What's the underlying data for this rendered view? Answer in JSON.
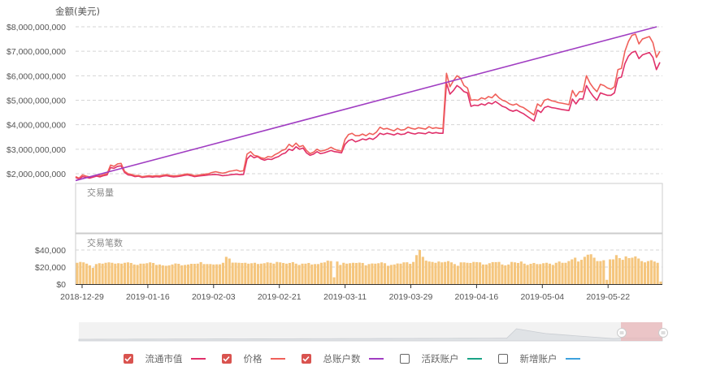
{
  "chart_data": {
    "type": "line",
    "title": "",
    "ylabel": "金额(美元)",
    "xlabel": "",
    "ylim": [
      2000000000,
      8000000000
    ],
    "y_ticks": [
      "$8,000,000,000",
      "$7,000,000,000",
      "$6,000,000,000",
      "$5,000,000,000",
      "$4,000,000,000",
      "$3,000,000,000",
      "$2,000,000,000"
    ],
    "x_ticks": [
      "2018-12-29",
      "2019-01-16",
      "2019-02-03",
      "2019-02-21",
      "2019-03-11",
      "2019-03-29",
      "2019-04-16",
      "2019-05-04",
      "2019-05-22"
    ],
    "x_range": [
      "2018-12-27",
      "2019-06-15"
    ],
    "grid": true,
    "legend_position": "bottom",
    "series": [
      {
        "name": "流通市值",
        "color": "#e0306a",
        "axis": "amount",
        "values_billion": [
          1.85,
          1.78,
          1.88,
          1.85,
          1.82,
          1.86,
          1.9,
          1.87,
          1.92,
          1.95,
          2.25,
          2.22,
          2.3,
          2.32,
          2.05,
          1.95,
          1.93,
          1.88,
          1.9,
          1.85,
          1.87,
          1.88,
          1.86,
          1.88,
          1.87,
          1.9,
          1.92,
          1.89,
          1.87,
          1.88,
          1.9,
          1.93,
          1.95,
          1.92,
          1.88,
          1.9,
          1.92,
          1.93,
          1.95,
          1.96,
          1.97,
          1.95,
          1.92,
          1.93,
          1.95,
          1.97,
          1.98,
          1.96,
          1.97,
          2.6,
          2.75,
          2.65,
          2.7,
          2.6,
          2.55,
          2.6,
          2.58,
          2.65,
          2.7,
          2.8,
          2.85,
          3.0,
          2.95,
          3.1,
          3.0,
          3.05,
          2.85,
          2.75,
          2.8,
          2.9,
          2.82,
          2.85,
          2.9,
          2.95,
          2.9,
          2.88,
          2.85,
          3.2,
          3.35,
          3.4,
          3.3,
          3.35,
          3.42,
          3.38,
          3.45,
          3.4,
          3.5,
          3.65,
          3.6,
          3.65,
          3.62,
          3.58,
          3.65,
          3.6,
          3.62,
          3.7,
          3.65,
          3.62,
          3.67,
          3.65,
          3.63,
          3.7,
          3.65,
          3.68,
          3.65,
          3.65,
          5.7,
          5.25,
          5.4,
          5.6,
          5.5,
          5.35,
          5.3,
          4.75,
          4.8,
          4.78,
          4.85,
          4.8,
          4.9,
          4.85,
          4.95,
          4.85,
          4.75,
          4.7,
          4.6,
          4.55,
          4.6,
          4.52,
          4.45,
          4.35,
          4.25,
          4.15,
          4.6,
          4.5,
          4.7,
          4.75,
          4.7,
          4.68,
          4.65,
          4.62,
          4.6,
          4.58,
          5.05,
          4.85,
          5.05,
          5.05,
          5.6,
          5.35,
          5.15,
          5.0,
          5.3,
          5.25,
          5.2,
          5.2,
          5.3,
          5.9,
          5.95,
          6.5,
          6.8,
          6.95,
          7.0,
          6.7,
          6.85,
          6.9,
          6.95,
          6.75,
          6.25,
          6.55
        ]
      },
      {
        "name": "价格",
        "color": "#f0605a",
        "axis": "amount",
        "values_billion": [
          1.88,
          1.82,
          1.95,
          1.9,
          1.87,
          1.9,
          1.95,
          1.92,
          1.96,
          2.0,
          2.35,
          2.3,
          2.4,
          2.42,
          2.1,
          2.0,
          1.97,
          1.92,
          1.93,
          1.88,
          1.9,
          1.92,
          1.9,
          1.92,
          1.91,
          1.94,
          1.96,
          1.93,
          1.91,
          1.92,
          1.94,
          1.97,
          1.99,
          1.96,
          1.92,
          1.94,
          1.96,
          1.98,
          2.0,
          2.05,
          2.08,
          2.05,
          2.02,
          2.05,
          2.1,
          2.12,
          2.15,
          2.1,
          2.12,
          2.8,
          2.9,
          2.75,
          2.72,
          2.65,
          2.62,
          2.7,
          2.68,
          2.78,
          2.85,
          2.95,
          3.0,
          3.2,
          3.1,
          3.25,
          3.1,
          3.15,
          2.95,
          2.82,
          2.88,
          3.0,
          2.92,
          2.95,
          3.0,
          3.08,
          3.0,
          2.95,
          2.92,
          3.4,
          3.6,
          3.65,
          3.55,
          3.55,
          3.62,
          3.55,
          3.65,
          3.6,
          3.7,
          3.9,
          3.82,
          3.85,
          3.8,
          3.75,
          3.85,
          3.78,
          3.8,
          3.9,
          3.85,
          3.82,
          3.88,
          3.85,
          3.82,
          3.92,
          3.85,
          3.88,
          3.85,
          3.85,
          6.1,
          5.55,
          5.8,
          6.0,
          5.9,
          5.6,
          5.5,
          5.0,
          5.02,
          5.0,
          5.1,
          5.05,
          5.15,
          5.1,
          5.25,
          5.1,
          5.0,
          4.95,
          4.85,
          4.8,
          4.85,
          4.75,
          4.7,
          4.6,
          4.5,
          4.4,
          4.85,
          4.75,
          5.0,
          5.05,
          4.98,
          4.95,
          4.9,
          4.88,
          4.85,
          4.82,
          5.4,
          5.15,
          5.35,
          5.35,
          6.0,
          5.7,
          5.5,
          5.35,
          5.65,
          5.6,
          5.5,
          5.45,
          5.55,
          6.25,
          6.3,
          7.0,
          7.4,
          7.65,
          7.7,
          7.3,
          7.5,
          7.55,
          7.6,
          7.35,
          6.75,
          7.0
        ]
      },
      {
        "name": "总账户数",
        "color": "#a03dc2",
        "axis": "amount",
        "start_billion": 1.72,
        "end_billion": 8.0,
        "shape": "linear"
      },
      {
        "name": "活跃账户",
        "color": "#1aa386",
        "visible": false
      },
      {
        "name": "新增账户",
        "color": "#3da1de",
        "visible": false
      }
    ],
    "sub_panels": [
      {
        "title": "交易量",
        "values": []
      },
      {
        "title": "交易笔数",
        "type": "bar",
        "color": "#f5c67e",
        "ylim": [
          0,
          45000
        ],
        "y_ticks": [
          "$40,000",
          "$20,000",
          "$0"
        ],
        "values": [
          25000,
          26000,
          25500,
          24000,
          22000,
          19000,
          23500,
          24500,
          24000,
          25000,
          25500,
          25000,
          24000,
          24500,
          24000,
          25000,
          25500,
          24800,
          23000,
          22500,
          24000,
          24000,
          24500,
          25500,
          24800,
          22500,
          23000,
          22000,
          21500,
          22000,
          23000,
          24200,
          23800,
          22000,
          22500,
          23000,
          23800,
          23800,
          24000,
          25800,
          23500,
          23500,
          23500,
          23000,
          23200,
          23200,
          25000,
          32000,
          30000,
          25200,
          25200,
          25000,
          24800,
          25000,
          24000,
          24500,
          25000,
          23600,
          24000,
          24500,
          25500,
          25000,
          24000,
          26000,
          25500,
          24800,
          24000,
          24800,
          25800,
          24000,
          22500,
          24000,
          24000,
          24800,
          23000,
          23500,
          23500,
          25000,
          25500,
          27500,
          27000,
          8000,
          26500,
          22500,
          25000,
          24000,
          24500,
          25000,
          24800,
          25200,
          24800,
          22000,
          23500,
          24200,
          24000,
          24500,
          25500,
          24500,
          21500,
          22500,
          23000,
          24200,
          24000,
          25500,
          25600,
          23800,
          26000,
          34000,
          40000,
          32000,
          27500,
          26500,
          26000,
          25000,
          26500,
          25500,
          26000,
          27000,
          25500,
          23500,
          21500,
          25500,
          25500,
          25000,
          24800,
          26000,
          25800,
          25500,
          23000,
          23000,
          24500,
          25800,
          25800,
          26000,
          23000,
          22000,
          23000,
          26000,
          25500,
          24800,
          26500,
          24000,
          22500,
          23800,
          24800,
          23500,
          23500,
          24500,
          25000,
          24000,
          22500,
          25000,
          26500,
          25000,
          25000,
          27000,
          29000,
          31000,
          26500,
          28500,
          32000,
          34500,
          35000,
          31000,
          27000,
          27000,
          28000,
          5000,
          29000,
          29000,
          34000,
          30500,
          28500,
          32500,
          30500,
          31000,
          32500,
          30000,
          27000,
          25500,
          27000,
          28000,
          26500,
          25000,
          3000
        ]
      }
    ],
    "data_zoom": {
      "selected_range_fraction": [
        0.93,
        1.0
      ]
    }
  },
  "legend": [
    {
      "label": "流通市值",
      "checked": true,
      "color": "#e0306a"
    },
    {
      "label": "价格",
      "checked": true,
      "color": "#f0605a"
    },
    {
      "label": "总账户数",
      "checked": true,
      "color": "#a03dc2"
    },
    {
      "label": "活跃账户",
      "checked": false,
      "color": "#1aa386"
    },
    {
      "label": "新增账户",
      "checked": false,
      "color": "#3da1de"
    }
  ],
  "colors": {
    "accent": "#d9534f",
    "bar": "#f5c67e",
    "grid": "#d8d8d8",
    "zoom_selected": "#e9b9bb"
  }
}
